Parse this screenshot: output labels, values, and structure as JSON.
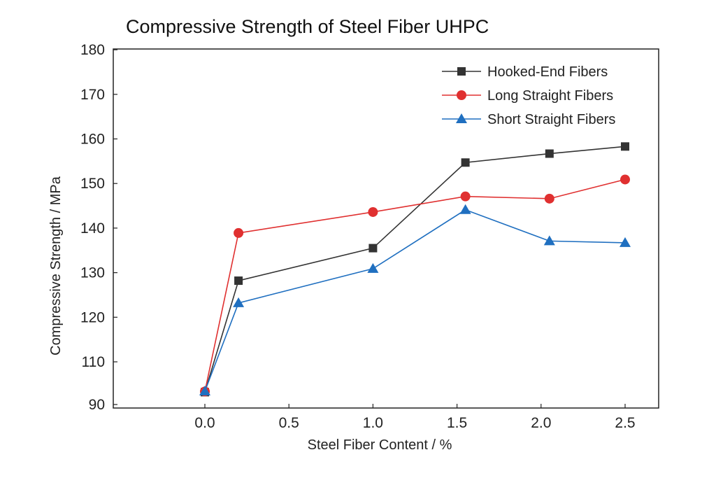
{
  "chart_data": {
    "type": "line",
    "title": "Compressive Strength of Steel Fiber UHPC",
    "xlabel": "Steel Fiber Content / %",
    "ylabel": "Compressive Strength / MPa",
    "xlim": [
      -0.55,
      2.7
    ],
    "ylim": [
      90,
      180
    ],
    "x_ticks": [
      0.0,
      0.5,
      1.0,
      1.5,
      2.0,
      2.5
    ],
    "x_tick_labels": [
      "0.0",
      "0.5",
      "1.0",
      "1.5",
      "2.0",
      "2.5"
    ],
    "y_ticks": [
      90,
      110,
      120,
      130,
      140,
      150,
      160,
      170,
      180
    ],
    "y_tick_labels": [
      "90",
      "110",
      "120",
      "130",
      "140",
      "150",
      "160",
      "170",
      "180"
    ],
    "legend_position": "top-right",
    "grid": false,
    "series": [
      {
        "name": "Hooked-End Fibers",
        "color": "#333333",
        "marker": "square",
        "x": [
          0.0,
          0.2,
          1.0,
          1.55,
          2.05,
          2.5
        ],
        "values": [
          95.5,
          128.2,
          135.5,
          154.7,
          156.7,
          158.3
        ]
      },
      {
        "name": "Long Straight Fibers",
        "color": "#e03030",
        "marker": "circle",
        "x": [
          0.0,
          0.2,
          1.0,
          1.55,
          2.05,
          2.5
        ],
        "values": [
          95.8,
          138.9,
          143.6,
          147.1,
          146.6,
          150.9
        ]
      },
      {
        "name": "Short Straight Fibers",
        "color": "#1f6fc0",
        "marker": "triangle",
        "x": [
          0.0,
          0.2,
          1.0,
          1.55,
          2.05,
          2.5
        ],
        "values": [
          95.9,
          123.2,
          130.9,
          144.1,
          137.1,
          136.7
        ]
      }
    ]
  }
}
